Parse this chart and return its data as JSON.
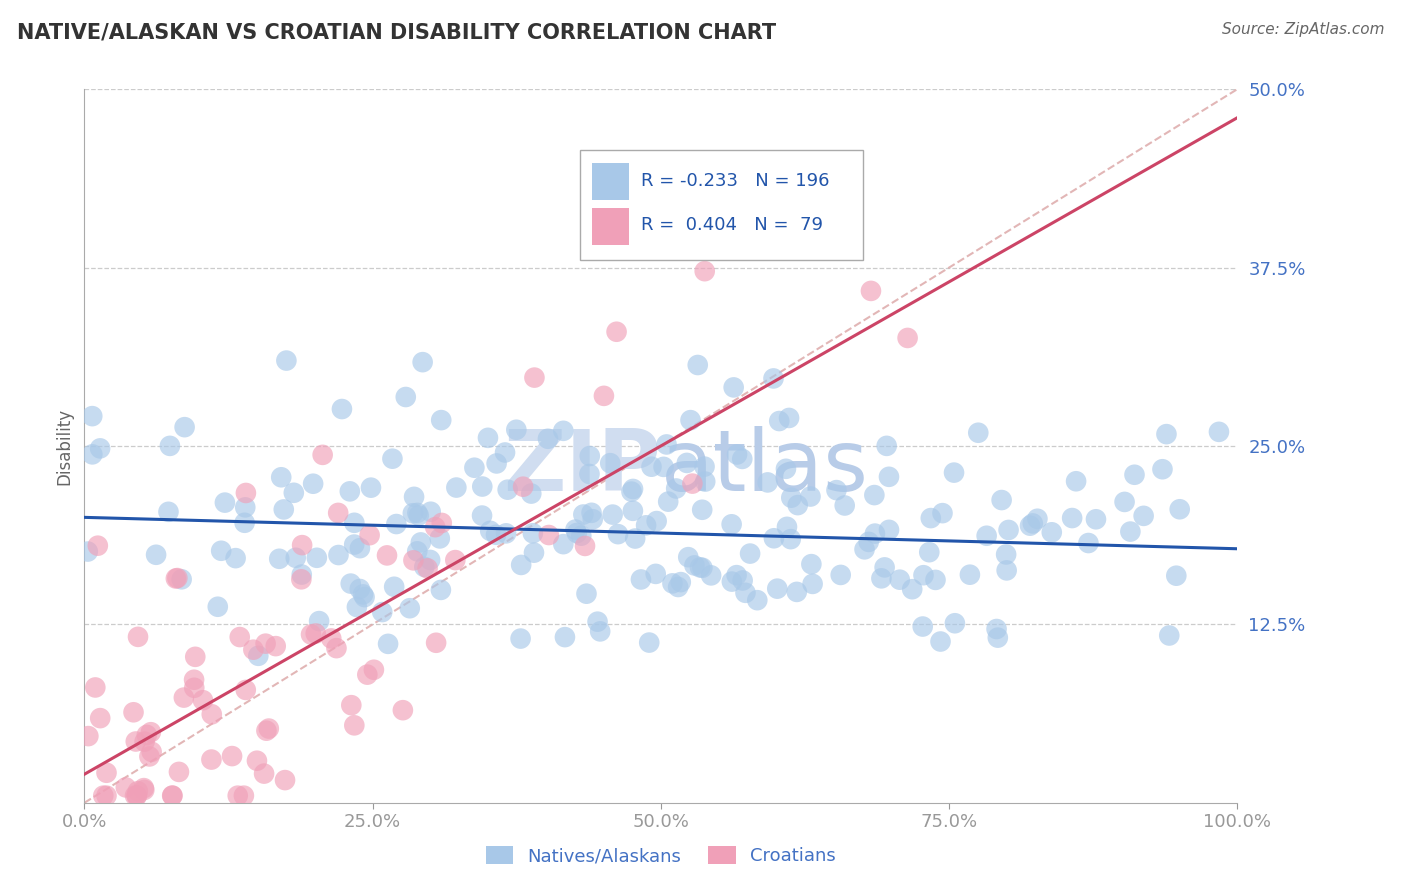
{
  "title": "NATIVE/ALASKAN VS CROATIAN DISABILITY CORRELATION CHART",
  "source": "Source: ZipAtlas.com",
  "ylabel": "Disability",
  "xlim": [
    0,
    1
  ],
  "ylim": [
    0,
    0.5
  ],
  "yticks": [
    0,
    0.125,
    0.25,
    0.375,
    0.5
  ],
  "ytick_labels": [
    "",
    "12.5%",
    "25.0%",
    "37.5%",
    "50.0%"
  ],
  "xticks": [
    0,
    0.25,
    0.5,
    0.75,
    1.0
  ],
  "xtick_labels": [
    "0.0%",
    "25.0%",
    "50.0%",
    "75.0%",
    "100.0%"
  ],
  "blue_color": "#a8c8e8",
  "pink_color": "#f0a0b8",
  "blue_line_color": "#2255aa",
  "pink_line_color": "#cc4466",
  "diag_color": "#ddaaaa",
  "title_color": "#333333",
  "axis_tick_color": "#4472c4",
  "legend_label_blue": "Natives/Alaskans",
  "legend_label_pink": "Croatians",
  "legend_r_blue": "R = -0.233",
  "legend_n_blue": "N = 196",
  "legend_r_pink": "R =  0.404",
  "legend_n_pink": "N =  79",
  "blue_trend_intercept": 0.2,
  "blue_trend_slope": -0.022,
  "pink_trend_intercept": 0.02,
  "pink_trend_slope": 0.46,
  "n_blue": 196,
  "n_pink": 79,
  "seed": 42,
  "watermark_zip_color": "#d0ddf0",
  "watermark_atlas_color": "#b8cce8"
}
